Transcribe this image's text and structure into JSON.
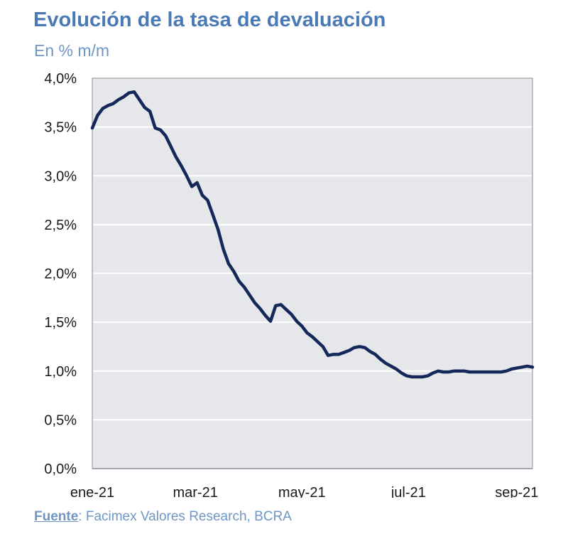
{
  "header": {
    "title": "Evolución de la tasa de devaluación",
    "subtitle": "En % m/m"
  },
  "footer": {
    "source_label": "Fuente",
    "source_text": ": Facimex Valores Research, BCRA"
  },
  "colors": {
    "line": "#14285a",
    "plot_background": "#e6e7ea",
    "grid": "#ffffff",
    "title": "#4a7ab3",
    "subtitle": "#6f96c4"
  },
  "chart_data": {
    "type": "line",
    "title": "Evolución de la tasa de devaluación",
    "subtitle": "En % m/m",
    "xlabel": "",
    "ylabel": "",
    "xlim": [
      "2021-01-01",
      "2021-09-10"
    ],
    "ylim": [
      0,
      4
    ],
    "grid": true,
    "legend": "none",
    "x_ticks": [
      {
        "date": "2021-01-01",
        "label": "ene-21"
      },
      {
        "date": "2021-03-01",
        "label": "mar-21"
      },
      {
        "date": "2021-05-01",
        "label": "may-21"
      },
      {
        "date": "2021-07-01",
        "label": "jul-21"
      },
      {
        "date": "2021-09-01",
        "label": "sep-21"
      }
    ],
    "y_ticks": [
      {
        "value": 0,
        "label": "0,0%"
      },
      {
        "value": 0.5,
        "label": "0,5%"
      },
      {
        "value": 1,
        "label": "1,0%"
      },
      {
        "value": 1.5,
        "label": "1,5%"
      },
      {
        "value": 2,
        "label": "2,0%"
      },
      {
        "value": 2.5,
        "label": "2,5%"
      },
      {
        "value": 3,
        "label": "3,0%"
      },
      {
        "value": 3.5,
        "label": "3,5%"
      },
      {
        "value": 4,
        "label": "4,0%"
      }
    ],
    "series": [
      {
        "x": [
          "2021-01-01",
          "2021-01-04",
          "2021-01-07",
          "2021-01-10",
          "2021-01-13",
          "2021-01-16",
          "2021-01-19",
          "2021-01-22",
          "2021-01-25",
          "2021-01-28",
          "2021-01-31",
          "2021-02-03",
          "2021-02-06",
          "2021-02-09",
          "2021-02-12",
          "2021-02-15",
          "2021-02-18",
          "2021-02-21",
          "2021-02-24",
          "2021-02-27",
          "2021-03-02",
          "2021-03-05",
          "2021-03-08",
          "2021-03-11",
          "2021-03-14",
          "2021-03-17",
          "2021-03-20",
          "2021-03-23",
          "2021-03-26",
          "2021-03-29",
          "2021-04-01",
          "2021-04-04",
          "2021-04-07",
          "2021-04-10",
          "2021-04-13",
          "2021-04-16",
          "2021-04-19",
          "2021-04-22",
          "2021-04-25",
          "2021-04-28",
          "2021-05-01",
          "2021-05-04",
          "2021-05-07",
          "2021-05-10",
          "2021-05-13",
          "2021-05-16",
          "2021-05-19",
          "2021-05-22",
          "2021-05-25",
          "2021-05-28",
          "2021-05-31",
          "2021-06-03",
          "2021-06-06",
          "2021-06-09",
          "2021-06-12",
          "2021-06-15",
          "2021-06-18",
          "2021-06-21",
          "2021-06-24",
          "2021-06-27",
          "2021-06-30",
          "2021-07-03",
          "2021-07-06",
          "2021-07-09",
          "2021-07-12",
          "2021-07-15",
          "2021-07-18",
          "2021-07-21",
          "2021-07-24",
          "2021-07-27",
          "2021-07-30",
          "2021-08-02",
          "2021-08-05",
          "2021-08-08",
          "2021-08-11",
          "2021-08-14",
          "2021-08-17",
          "2021-08-20",
          "2021-08-23",
          "2021-08-26",
          "2021-08-29",
          "2021-09-01",
          "2021-09-04",
          "2021-09-07",
          "2021-09-10"
        ],
        "y": [
          3.49,
          3.62,
          3.69,
          3.72,
          3.74,
          3.78,
          3.81,
          3.85,
          3.86,
          3.78,
          3.7,
          3.66,
          3.49,
          3.47,
          3.41,
          3.3,
          3.19,
          3.1,
          3.0,
          2.89,
          2.93,
          2.8,
          2.75,
          2.6,
          2.45,
          2.25,
          2.1,
          2.02,
          1.92,
          1.86,
          1.78,
          1.7,
          1.64,
          1.57,
          1.51,
          1.67,
          1.68,
          1.63,
          1.58,
          1.51,
          1.46,
          1.39,
          1.35,
          1.3,
          1.25,
          1.16,
          1.17,
          1.17,
          1.19,
          1.21,
          1.24,
          1.25,
          1.24,
          1.2,
          1.17,
          1.12,
          1.08,
          1.05,
          1.02,
          0.98,
          0.95,
          0.94,
          0.94,
          0.94,
          0.95,
          0.98,
          1.0,
          0.99,
          0.99,
          1.0,
          1.0,
          1.0,
          0.99,
          0.99,
          0.99,
          0.99,
          0.99,
          0.99,
          0.99,
          1.0,
          1.02,
          1.03,
          1.04,
          1.05,
          1.04
        ]
      }
    ]
  }
}
